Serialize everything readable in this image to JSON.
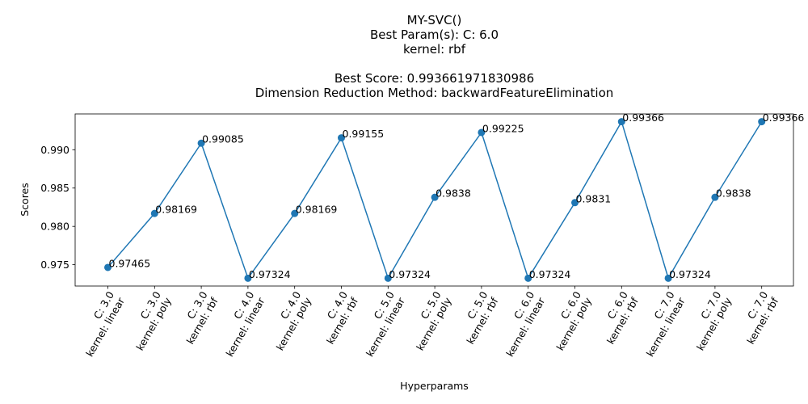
{
  "chart_data": {
    "type": "line",
    "title_lines": [
      "MY-SVC()",
      "Best Param(s): C: 6.0",
      "kernel: rbf",
      "",
      "Best Score: 0.993661971830986",
      "Dimension Reduction Method: backwardFeatureElimination"
    ],
    "xlabel": "Hyperparams",
    "ylabel": "Scores",
    "categories": [
      [
        "C: 3.0",
        "kernel: linear"
      ],
      [
        "C: 3.0",
        "kernel: poly"
      ],
      [
        "C: 3.0",
        "kernel: rbf"
      ],
      [
        "C: 4.0",
        "kernel: linear"
      ],
      [
        "C: 4.0",
        "kernel: poly"
      ],
      [
        "C: 4.0",
        "kernel: rbf"
      ],
      [
        "C: 5.0",
        "kernel: linear"
      ],
      [
        "C: 5.0",
        "kernel: poly"
      ],
      [
        "C: 5.0",
        "kernel: rbf"
      ],
      [
        "C: 6.0",
        "kernel: linear"
      ],
      [
        "C: 6.0",
        "kernel: poly"
      ],
      [
        "C: 6.0",
        "kernel: rbf"
      ],
      [
        "C: 7.0",
        "kernel: linear"
      ],
      [
        "C: 7.0",
        "kernel: poly"
      ],
      [
        "C: 7.0",
        "kernel: rbf"
      ]
    ],
    "values": [
      0.97465,
      0.98169,
      0.99085,
      0.97324,
      0.98169,
      0.99155,
      0.97324,
      0.9838,
      0.99225,
      0.97324,
      0.9831,
      0.99366,
      0.97324,
      0.9838,
      0.99366
    ],
    "point_labels": [
      "0.97465",
      "0.98169",
      "0.99085",
      "0.97324",
      "0.98169",
      "0.99155",
      "0.97324",
      "0.9838",
      "0.99225",
      "0.97324",
      "0.9831",
      "0.99366",
      "0.97324",
      "0.9838",
      "0.99366"
    ],
    "y_ticks": [
      0.975,
      0.98,
      0.985,
      0.99
    ],
    "y_tick_labels": [
      "0.975",
      "0.980",
      "0.985",
      "0.990"
    ],
    "ylim": [
      0.97222,
      0.99467
    ],
    "grid": false,
    "line_color": "#1f77b4",
    "marker_color": "#1f77b4"
  }
}
